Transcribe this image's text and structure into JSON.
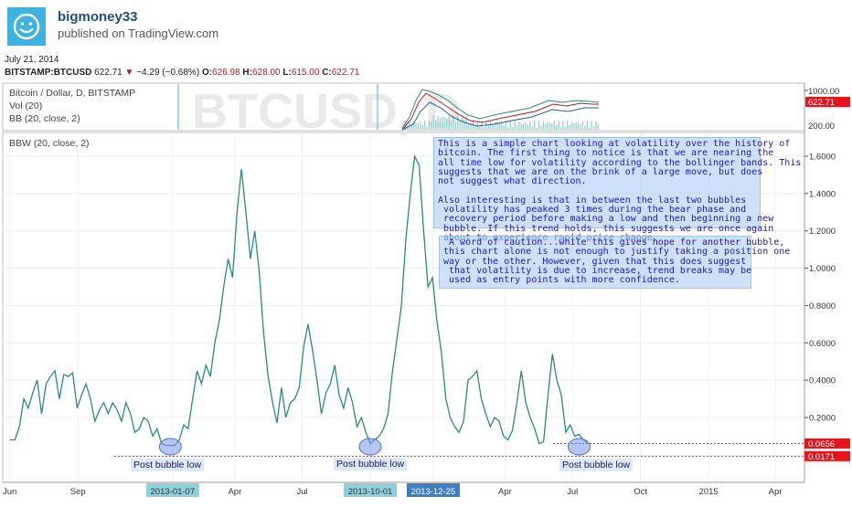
{
  "header": {
    "author": "bigmoney33",
    "published": "published on TradingView.com",
    "date": "July 21, 2014"
  },
  "quote": {
    "symbol": "BITSTAMP:BTCUSD",
    "last": "622.71",
    "arrow": "▼",
    "change": "−4.29 (−0.68%)",
    "o_label": "O:",
    "o": "626.98",
    "h_label": "H:",
    "h": "628.00",
    "l_label": "L:",
    "l": "615.00",
    "c_label": "C:",
    "c": "622.71"
  },
  "top_pane": {
    "legend1": "Bitcoin / Dollar, D, BITSTAMP",
    "legend2": "Vol (20)",
    "legend3": "BB (20, close, 2)",
    "watermark": "BTCUSD, D",
    "axis_1000": "1000.00",
    "price_tag": "622.71",
    "axis_200": "200.00"
  },
  "bottom_pane": {
    "legend": "BBW (20, close, 2)",
    "tag_upper": "0.0656",
    "tag_lower": "0.0171"
  },
  "annotations": {
    "note1": "This is a simple chart looking at volatility over the history of\nbitcoin. The first thing to notice is that we are nearing the\nall time low for volatility according to the bollinger bands. This\nsuggests that we are on the brink of a large move, but does\nnot suggest what direction.\n\nAlso interesting is that in between the last two bubbles\n volatility has peaked 3 times during the bear phase and\n recovery period before making a low and then beginning a new\n bubble. If this trend holds, this suggests we are once again\n about to experience rapid price change.",
    "note2": " A word of caution...while this gives hope for another bubble,\nthis chart alone is not enough to justify taking a position one\nway or the other. However, given that this does suggest\n that volatility is due to increase, trend breaks may be\n used as entry points with more confidence.",
    "low1": "Post bubble low",
    "low2": "Post bubble low",
    "low3": "Post bubble low"
  },
  "colors": {
    "bbw_line": "#2a8a80",
    "tag_red": "#e8141c",
    "note_text": "#1b1bb5",
    "date_highlight": "#8fd0dd",
    "date_highlight2": "#3d7fc1"
  },
  "chart_data": {
    "type": "line",
    "title": "BBW (20, close, 2)",
    "xlabel": "",
    "ylabel": "",
    "x_ticks": [
      "Jun",
      "Sep",
      "2013-01-07",
      "Apr",
      "Jul",
      "2013-10-01",
      "2013-12-25",
      "Apr",
      "Jul",
      "Oct",
      "2015",
      "Apr"
    ],
    "y_ticks": [
      "0.2000",
      "0.4000",
      "0.6000",
      "0.8000",
      "1.0000",
      "1.2000",
      "1.4000",
      "1.6000"
    ],
    "ylim": [
      0,
      1.75
    ],
    "grid": true,
    "series": [
      {
        "name": "BBW (20, close, 2)",
        "x": [
          "2012-06-01",
          "2012-06-08",
          "2012-06-14",
          "2012-06-20",
          "2012-06-26",
          "2012-07-02",
          "2012-07-08",
          "2012-07-14",
          "2012-07-20",
          "2012-07-26",
          "2012-08-01",
          "2012-08-07",
          "2012-08-13",
          "2012-08-19",
          "2012-08-25",
          "2012-08-31",
          "2012-09-06",
          "2012-09-12",
          "2012-09-18",
          "2012-09-24",
          "2012-09-30",
          "2012-10-06",
          "2012-10-12",
          "2012-10-18",
          "2012-10-24",
          "2012-10-30",
          "2012-11-05",
          "2012-11-11",
          "2012-11-17",
          "2012-11-23",
          "2012-11-29",
          "2012-12-05",
          "2012-12-11",
          "2012-12-17",
          "2012-12-23",
          "2012-12-29",
          "2013-01-04",
          "2013-01-10",
          "2013-01-16",
          "2013-01-22",
          "2013-01-28",
          "2013-02-03",
          "2013-02-09",
          "2013-02-15",
          "2013-02-21",
          "2013-02-27",
          "2013-03-05",
          "2013-03-11",
          "2013-03-17",
          "2013-03-23",
          "2013-03-29",
          "2013-04-04",
          "2013-04-10",
          "2013-04-16",
          "2013-04-22",
          "2013-04-28",
          "2013-05-04",
          "2013-05-10",
          "2013-05-16",
          "2013-05-22",
          "2013-05-28",
          "2013-06-03",
          "2013-06-09",
          "2013-06-15",
          "2013-06-21",
          "2013-06-27",
          "2013-07-03",
          "2013-07-09",
          "2013-07-15",
          "2013-07-21",
          "2013-07-27",
          "2013-08-02",
          "2013-08-08",
          "2013-08-14",
          "2013-08-20",
          "2013-08-26",
          "2013-09-01",
          "2013-09-07",
          "2013-09-13",
          "2013-09-19",
          "2013-09-25",
          "2013-10-01",
          "2013-10-07",
          "2013-10-13",
          "2013-10-19",
          "2013-10-25",
          "2013-10-31",
          "2013-11-06",
          "2013-11-12",
          "2013-11-18",
          "2013-11-24",
          "2013-11-30",
          "2013-12-06",
          "2013-12-12",
          "2013-12-18",
          "2013-12-24",
          "2013-12-30",
          "2014-01-05",
          "2014-01-11",
          "2014-01-17",
          "2014-01-23",
          "2014-01-29",
          "2014-02-04",
          "2014-02-10",
          "2014-02-16",
          "2014-02-22",
          "2014-02-28",
          "2014-03-06",
          "2014-03-12",
          "2014-03-18",
          "2014-03-24",
          "2014-03-30",
          "2014-04-05",
          "2014-04-11",
          "2014-04-17",
          "2014-04-23",
          "2014-04-29",
          "2014-05-05",
          "2014-05-11",
          "2014-05-17",
          "2014-05-23",
          "2014-05-29",
          "2014-06-04",
          "2014-06-10",
          "2014-06-16",
          "2014-06-22",
          "2014-06-28",
          "2014-07-04",
          "2014-07-10",
          "2014-07-16",
          "2014-07-21"
        ],
        "values": [
          0.08,
          0.08,
          0.15,
          0.3,
          0.25,
          0.33,
          0.4,
          0.22,
          0.38,
          0.42,
          0.45,
          0.3,
          0.43,
          0.42,
          0.44,
          0.25,
          0.32,
          0.38,
          0.3,
          0.18,
          0.24,
          0.28,
          0.22,
          0.28,
          0.24,
          0.18,
          0.28,
          0.22,
          0.12,
          0.14,
          0.2,
          0.18,
          0.1,
          0.14,
          0.06,
          0.05,
          0.05,
          0.05,
          0.08,
          0.16,
          0.14,
          0.3,
          0.45,
          0.38,
          0.48,
          0.42,
          0.6,
          0.72,
          0.9,
          1.05,
          0.95,
          1.3,
          1.53,
          1.3,
          1.05,
          1.2,
          0.98,
          0.65,
          0.42,
          0.28,
          0.17,
          0.36,
          0.2,
          0.28,
          0.3,
          0.36,
          0.58,
          0.7,
          0.56,
          0.4,
          0.22,
          0.33,
          0.38,
          0.48,
          0.32,
          0.25,
          0.36,
          0.28,
          0.15,
          0.2,
          0.12,
          0.06,
          0.08,
          0.1,
          0.14,
          0.22,
          0.45,
          0.62,
          0.8,
          1.15,
          1.4,
          1.6,
          1.55,
          1.2,
          0.9,
          0.95,
          0.72,
          0.55,
          0.3,
          0.2,
          0.15,
          0.12,
          0.18,
          0.4,
          0.42,
          0.45,
          0.3,
          0.22,
          0.15,
          0.2,
          0.18,
          0.1,
          0.08,
          0.13,
          0.28,
          0.45,
          0.28,
          0.2,
          0.14,
          0.06,
          0.07,
          0.32,
          0.54,
          0.4,
          0.32,
          0.12,
          0.16,
          0.1,
          0.11,
          0.08,
          0.065
        ]
      }
    ],
    "levels": [
      {
        "label": "0.0656",
        "value": 0.0656
      },
      {
        "label": "0.0171",
        "value": 0.0171
      }
    ]
  }
}
